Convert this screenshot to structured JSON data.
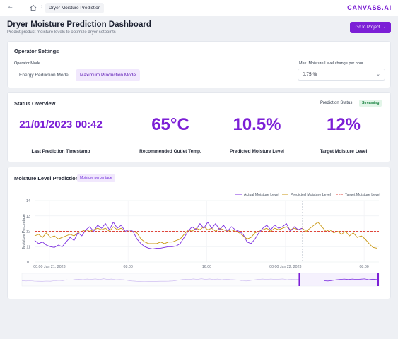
{
  "topbar": {
    "collapse_icon": "collapse-sidebar-icon",
    "home_icon": "home-icon",
    "separator": "›",
    "breadcrumb": "Dryer Moisture Prediction",
    "logo": "CANVASS.Ai"
  },
  "header": {
    "title": "Dryer Moisture Prediction Dashboard",
    "subtitle": "Predict product moisture levels to optimize dryer setpoints",
    "goto_button": "Go to Project →"
  },
  "operator": {
    "title": "Operator Settings",
    "mode_label": "Operator Mode",
    "modes": [
      "Energy Reduction Mode",
      "Maximum Production Mode"
    ],
    "selected_mode": "Maximum Production Mode",
    "max_change_label": "Max. Moisture Level change per hour",
    "max_change_value": "0.75 %"
  },
  "status": {
    "title": "Status Overview",
    "prediction_status_label": "Prediction Status",
    "prediction_status": "Streaming",
    "kpis": [
      {
        "value": "21/01/2023 00:42",
        "label": "Last Prediction Timestamp"
      },
      {
        "value": "65°C",
        "label": "Recommended Outlet Temp."
      },
      {
        "value": "10.5%",
        "label": "Predicted Moisture Level"
      },
      {
        "value": "12%",
        "label": "Target Moisture Level"
      }
    ]
  },
  "colors": {
    "accent": "#7c1fd6",
    "actual": "#7c2ee0",
    "predicted": "#c8960f",
    "target": "#e0463c"
  },
  "chart_data": {
    "type": "line",
    "title": "Moisture Level Prediction",
    "badge": "Moisture percentage",
    "ylabel": "Moisture Percentage",
    "xlabel": "",
    "ylim": [
      10,
      14
    ],
    "yticks": [
      10,
      11,
      12,
      13,
      14
    ],
    "x_ticks": [
      "00:00 Jan 21, 2023",
      "08:00",
      "16:00",
      "00:00 Jan 22, 2023",
      "08:00"
    ],
    "x_tick_hours": [
      0,
      8,
      16,
      24,
      32
    ],
    "xlim_hours": [
      -1.5,
      33.5
    ],
    "legend_position": "top-right",
    "grid": true,
    "series": [
      {
        "name": "Actual Moisture Level",
        "style": "solid",
        "points": [
          [
            -1.5,
            11.4
          ],
          [
            -1.1,
            11.2
          ],
          [
            -0.7,
            11.3
          ],
          [
            -0.3,
            11.1
          ],
          [
            0.1,
            11.0
          ],
          [
            0.5,
            10.95
          ],
          [
            0.9,
            11.1
          ],
          [
            1.3,
            11.0
          ],
          [
            1.7,
            11.3
          ],
          [
            2.1,
            11.6
          ],
          [
            2.5,
            11.4
          ],
          [
            2.9,
            11.9
          ],
          [
            3.3,
            11.7
          ],
          [
            3.7,
            12.1
          ],
          [
            4.1,
            12.3
          ],
          [
            4.5,
            12.0
          ],
          [
            4.9,
            12.4
          ],
          [
            5.3,
            12.2
          ],
          [
            5.7,
            12.5
          ],
          [
            6.1,
            12.1
          ],
          [
            6.5,
            12.6
          ],
          [
            6.9,
            12.2
          ],
          [
            7.3,
            12.4
          ],
          [
            7.7,
            12.0
          ],
          [
            8.1,
            12.1
          ],
          [
            8.5,
            12.0
          ],
          [
            8.9,
            11.5
          ],
          [
            9.3,
            11.2
          ],
          [
            9.7,
            11.0
          ],
          [
            10.1,
            10.9
          ],
          [
            10.5,
            10.85
          ],
          [
            10.9,
            10.9
          ],
          [
            11.3,
            10.9
          ],
          [
            11.7,
            10.95
          ],
          [
            12.1,
            11.0
          ],
          [
            12.5,
            11.0
          ],
          [
            12.9,
            11.05
          ],
          [
            13.3,
            11.2
          ],
          [
            13.7,
            11.6
          ],
          [
            14.1,
            12.0
          ],
          [
            14.5,
            12.3
          ],
          [
            14.9,
            12.1
          ],
          [
            15.3,
            12.5
          ],
          [
            15.7,
            12.2
          ],
          [
            16.1,
            12.6
          ],
          [
            16.5,
            12.2
          ],
          [
            16.9,
            12.5
          ],
          [
            17.3,
            12.1
          ],
          [
            17.7,
            12.4
          ],
          [
            18.1,
            12.0
          ],
          [
            18.5,
            12.3
          ],
          [
            18.9,
            12.1
          ],
          [
            19.3,
            12.0
          ],
          [
            19.7,
            11.8
          ],
          [
            20.1,
            11.3
          ],
          [
            20.5,
            11.2
          ],
          [
            20.9,
            11.5
          ],
          [
            21.3,
            11.9
          ],
          [
            21.7,
            12.2
          ],
          [
            22.1,
            12.4
          ],
          [
            22.5,
            12.1
          ],
          [
            22.9,
            12.4
          ],
          [
            23.3,
            12.2
          ],
          [
            23.7,
            12.3
          ],
          [
            24.1,
            12.5
          ],
          [
            24.5,
            12.0
          ],
          [
            24.9,
            12.3
          ],
          [
            25.3,
            12.1
          ],
          [
            25.7,
            12.2
          ]
        ]
      },
      {
        "name": "Predicted Moisture Level",
        "style": "solid",
        "points": [
          [
            -1.5,
            11.7
          ],
          [
            -1.1,
            11.8
          ],
          [
            -0.7,
            11.6
          ],
          [
            -0.3,
            11.9
          ],
          [
            0.1,
            11.6
          ],
          [
            0.5,
            11.7
          ],
          [
            0.9,
            11.5
          ],
          [
            1.3,
            11.6
          ],
          [
            1.7,
            11.7
          ],
          [
            2.1,
            11.8
          ],
          [
            2.5,
            11.7
          ],
          [
            2.9,
            11.9
          ],
          [
            3.3,
            12.0
          ],
          [
            3.7,
            12.1
          ],
          [
            4.1,
            12.0
          ],
          [
            4.5,
            12.1
          ],
          [
            4.9,
            12.2
          ],
          [
            5.3,
            12.1
          ],
          [
            5.7,
            12.2
          ],
          [
            6.1,
            12.0
          ],
          [
            6.5,
            12.3
          ],
          [
            6.9,
            12.1
          ],
          [
            7.3,
            12.2
          ],
          [
            7.7,
            12.0
          ],
          [
            8.1,
            12.1
          ],
          [
            8.5,
            12.0
          ],
          [
            8.9,
            11.9
          ],
          [
            9.3,
            11.5
          ],
          [
            9.7,
            11.3
          ],
          [
            10.1,
            11.2
          ],
          [
            10.5,
            11.2
          ],
          [
            10.9,
            11.2
          ],
          [
            11.3,
            11.3
          ],
          [
            11.7,
            11.2
          ],
          [
            12.1,
            11.3
          ],
          [
            12.5,
            11.3
          ],
          [
            12.9,
            11.4
          ],
          [
            13.3,
            11.5
          ],
          [
            13.7,
            11.8
          ],
          [
            14.1,
            12.1
          ],
          [
            14.5,
            12.0
          ],
          [
            14.9,
            12.2
          ],
          [
            15.3,
            12.1
          ],
          [
            15.7,
            12.3
          ],
          [
            16.1,
            12.1
          ],
          [
            16.5,
            12.2
          ],
          [
            16.9,
            12.0
          ],
          [
            17.3,
            12.2
          ],
          [
            17.7,
            12.1
          ],
          [
            18.1,
            12.0
          ],
          [
            18.5,
            12.1
          ],
          [
            18.9,
            12.0
          ],
          [
            19.3,
            11.9
          ],
          [
            19.7,
            11.7
          ],
          [
            20.1,
            11.5
          ],
          [
            20.5,
            11.6
          ],
          [
            20.9,
            11.9
          ],
          [
            21.3,
            12.0
          ],
          [
            21.7,
            12.1
          ],
          [
            22.1,
            12.2
          ],
          [
            22.5,
            12.0
          ],
          [
            22.9,
            12.2
          ],
          [
            23.3,
            12.1
          ],
          [
            23.7,
            12.2
          ],
          [
            24.1,
            12.3
          ],
          [
            24.5,
            12.1
          ],
          [
            24.9,
            12.2
          ],
          [
            25.3,
            12.1
          ],
          [
            25.7,
            12.2
          ],
          [
            26.1,
            12.0
          ],
          [
            26.5,
            12.2
          ],
          [
            26.9,
            12.4
          ],
          [
            27.3,
            12.6
          ],
          [
            27.7,
            12.3
          ],
          [
            28.1,
            12.0
          ],
          [
            28.5,
            12.1
          ],
          [
            28.9,
            11.9
          ],
          [
            29.3,
            12.0
          ],
          [
            29.7,
            11.8
          ],
          [
            30.1,
            12.0
          ],
          [
            30.5,
            11.7
          ],
          [
            30.9,
            11.9
          ],
          [
            31.3,
            11.6
          ],
          [
            31.7,
            11.7
          ],
          [
            32.1,
            11.5
          ],
          [
            32.5,
            11.2
          ],
          [
            32.9,
            10.95
          ],
          [
            33.3,
            10.9
          ]
        ]
      },
      {
        "name": "Target Moisture Level",
        "style": "dashed",
        "points": [
          [
            -1.5,
            12.0
          ],
          [
            33.5,
            12.0
          ]
        ]
      }
    ],
    "current_time_hour": 25.7
  }
}
